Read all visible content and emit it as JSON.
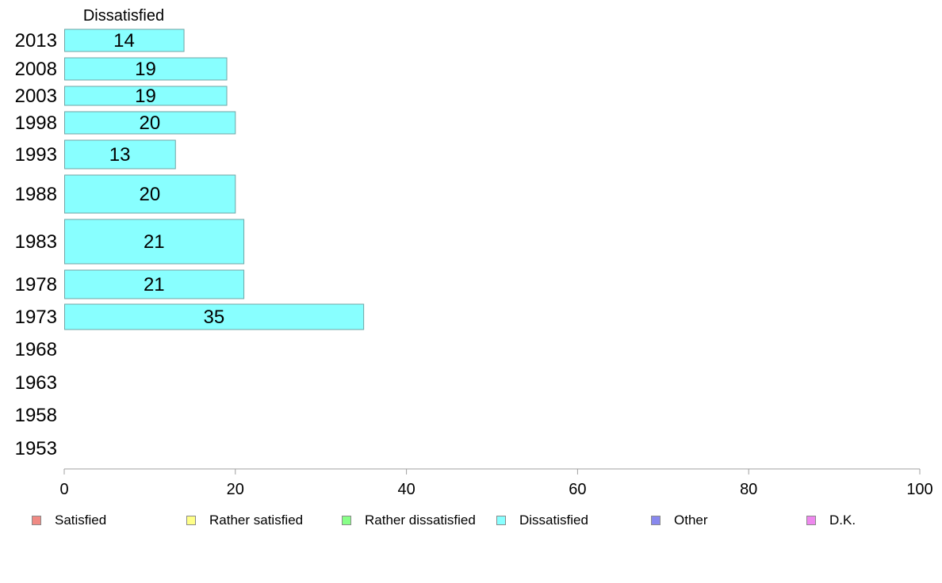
{
  "chart_data": {
    "type": "bar",
    "orientation": "horizontal",
    "title": "Dissatisfied",
    "categories": [
      "2013",
      "2008",
      "2003",
      "1998",
      "1993",
      "1988",
      "1983",
      "1978",
      "1973",
      "1968",
      "1963",
      "1958",
      "1953"
    ],
    "series": [
      {
        "name": "Dissatisfied",
        "color": "#88ffff",
        "values": [
          14,
          19,
          19,
          20,
          13,
          20,
          21,
          21,
          35,
          null,
          null,
          null,
          null
        ]
      }
    ],
    "xlim": [
      0,
      100
    ],
    "x_ticks": [
      "0",
      "20",
      "40",
      "60",
      "80",
      "100"
    ],
    "grid": false,
    "legend": {
      "placement": "bottom",
      "entries": [
        {
          "label": "Satisfied",
          "color": "#f08a84"
        },
        {
          "label": "Rather satisfied",
          "color": "#ffff88"
        },
        {
          "label": "Rather dissatisfied",
          "color": "#88ff88"
        },
        {
          "label": "Dissatisfied",
          "color": "#88ffff"
        },
        {
          "label": "Other",
          "color": "#8888ee"
        },
        {
          "label": "D.K.",
          "color": "#ee88ee"
        }
      ]
    }
  }
}
